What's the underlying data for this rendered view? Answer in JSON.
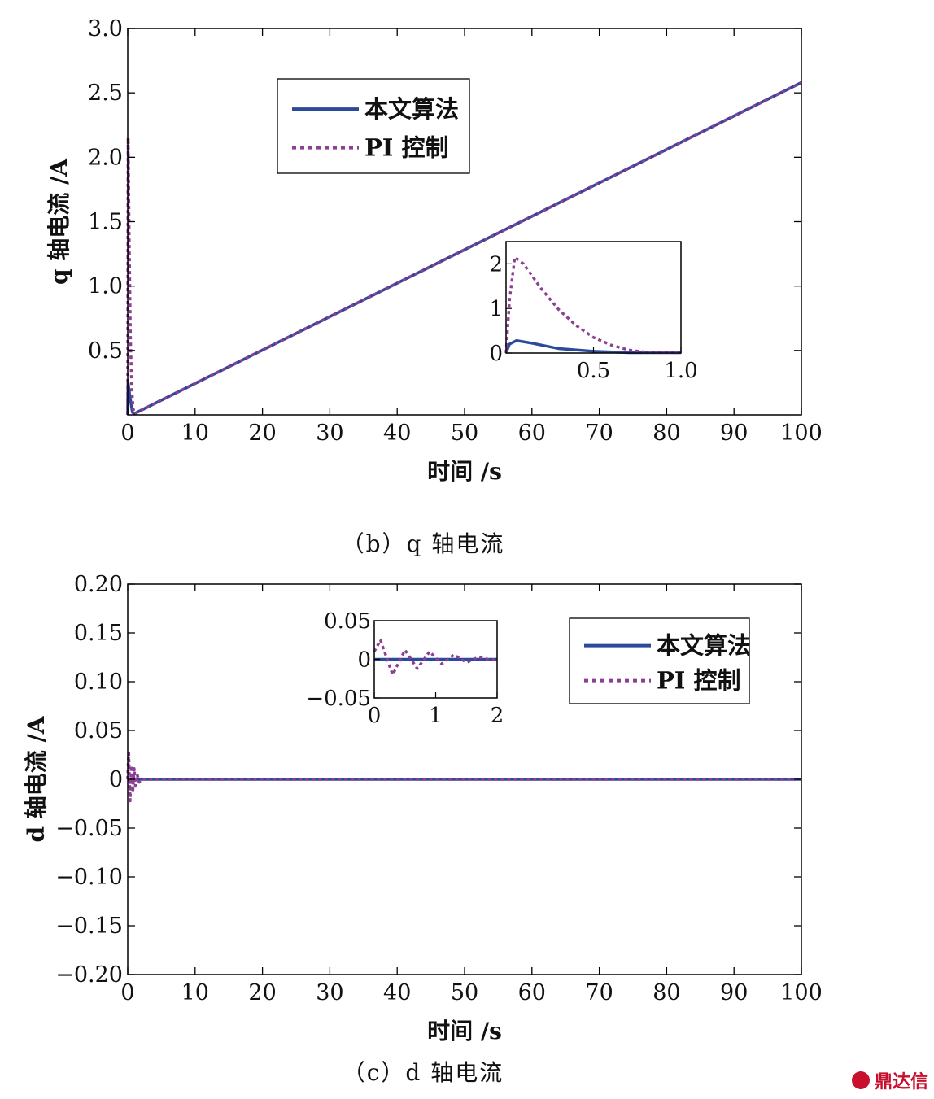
{
  "colors": {
    "alg": "#2b4a9a",
    "pi": "#8e3f93",
    "axis": "#000000"
  },
  "watermark": {
    "text": "鼎达信"
  },
  "chart_data": [
    {
      "type": "line",
      "caption": "（b）q 轴电流",
      "xlabel": "时间 /s",
      "ylabel": "q 轴电流 /A",
      "xlim": [
        0,
        100
      ],
      "ylim": [
        0,
        3.0
      ],
      "x_ticks": [
        0,
        10,
        20,
        30,
        40,
        50,
        60,
        70,
        80,
        90,
        100
      ],
      "x_tick_labels": [
        "0",
        "10",
        "20",
        "30",
        "40",
        "50",
        "60",
        "70",
        "80",
        "90",
        "100"
      ],
      "y_ticks": [
        0.5,
        1.0,
        1.5,
        2.0,
        2.5,
        3.0
      ],
      "y_tick_labels": [
        "0.5",
        "1.0",
        "1.5",
        "2.0",
        "2.5",
        "3.0"
      ],
      "legend": {
        "placement": "top-left",
        "entries": [
          "本文算法",
          "PI 控制"
        ]
      },
      "series": [
        {
          "name": "本文算法",
          "style": "solid",
          "x": [
            0,
            0.05,
            0.3,
            0.7,
            1.0,
            100
          ],
          "y": [
            0,
            0.25,
            0.15,
            0.02,
            0.01,
            2.58
          ]
        },
        {
          "name": "PI 控制",
          "style": "dotted",
          "x": [
            0,
            0.06,
            0.2,
            0.4,
            0.6,
            0.8,
            1.0,
            100
          ],
          "y": [
            0,
            2.15,
            1.4,
            0.6,
            0.2,
            0.05,
            0.01,
            2.58
          ]
        }
      ],
      "inset": {
        "xlim": [
          0,
          1.0
        ],
        "ylim": [
          0,
          2.5
        ],
        "x_ticks": [
          0.5,
          1.0
        ],
        "x_tick_labels": [
          "0.5",
          "1.0"
        ],
        "y_ticks": [
          0,
          1,
          2
        ],
        "y_tick_labels": [
          "0",
          "1",
          "2"
        ],
        "series": [
          {
            "name": "本文算法",
            "style": "solid",
            "x": [
              0,
              0.02,
              0.06,
              0.15,
              0.3,
              0.5,
              0.7,
              1.0
            ],
            "y": [
              0,
              0.2,
              0.28,
              0.22,
              0.1,
              0.04,
              0.01,
              0.01
            ]
          },
          {
            "name": "PI 控制",
            "style": "dotted",
            "x": [
              0,
              0.02,
              0.05,
              0.1,
              0.2,
              0.3,
              0.4,
              0.5,
              0.6,
              0.7,
              0.8,
              1.0
            ],
            "y": [
              0,
              1.2,
              2.15,
              2.0,
              1.45,
              0.98,
              0.62,
              0.35,
              0.18,
              0.07,
              0.02,
              0.01
            ]
          }
        ]
      }
    },
    {
      "type": "line",
      "caption": "（c）d 轴电流",
      "xlabel": "时间 /s",
      "ylabel": "d 轴电流 /A",
      "xlim": [
        0,
        100
      ],
      "ylim": [
        -0.2,
        0.2
      ],
      "x_ticks": [
        0,
        10,
        20,
        30,
        40,
        50,
        60,
        70,
        80,
        90,
        100
      ],
      "x_tick_labels": [
        "0",
        "10",
        "20",
        "30",
        "40",
        "50",
        "60",
        "70",
        "80",
        "90",
        "100"
      ],
      "y_ticks": [
        -0.2,
        -0.15,
        -0.1,
        -0.05,
        0,
        0.05,
        0.1,
        0.15,
        0.2
      ],
      "y_tick_labels": [
        "−0.20",
        "−0.15",
        "−0.10",
        "−0.05",
        "0",
        "0.05",
        "0.10",
        "0.15",
        "0.20"
      ],
      "legend": {
        "placement": "top-right",
        "entries": [
          "本文算法",
          "PI 控制"
        ]
      },
      "series": [
        {
          "name": "本文算法",
          "style": "solid",
          "x": [
            0,
            100
          ],
          "y": [
            0,
            0
          ]
        },
        {
          "name": "PI 控制",
          "style": "dotted",
          "x": [
            0,
            0.15,
            0.35,
            0.55,
            0.75,
            0.95,
            1.15,
            1.4,
            1.7,
            2.0,
            100
          ],
          "y": [
            0,
            0.027,
            -0.022,
            0.014,
            -0.013,
            0.011,
            -0.007,
            0.005,
            -0.003,
            0,
            0
          ]
        }
      ],
      "inset": {
        "xlim": [
          0,
          2
        ],
        "ylim": [
          -0.05,
          0.05
        ],
        "x_ticks": [
          0,
          1,
          2
        ],
        "x_tick_labels": [
          "0",
          "1",
          "2"
        ],
        "y_ticks": [
          -0.05,
          0,
          0.05
        ],
        "y_tick_labels": [
          "−0.05",
          "0",
          "0.05"
        ],
        "series": [
          {
            "name": "本文算法",
            "style": "solid",
            "x": [
              0,
              2
            ],
            "y": [
              0,
              0
            ]
          },
          {
            "name": "PI 控制",
            "style": "dotted",
            "x": [
              0,
              0.1,
              0.3,
              0.5,
              0.7,
              0.9,
              1.1,
              1.3,
              1.5,
              1.7,
              1.9,
              2.0
            ],
            "y": [
              0.01,
              0.025,
              -0.02,
              0.012,
              -0.012,
              0.01,
              -0.006,
              0.006,
              -0.004,
              0.003,
              -0.001,
              0
            ]
          }
        ]
      }
    }
  ]
}
